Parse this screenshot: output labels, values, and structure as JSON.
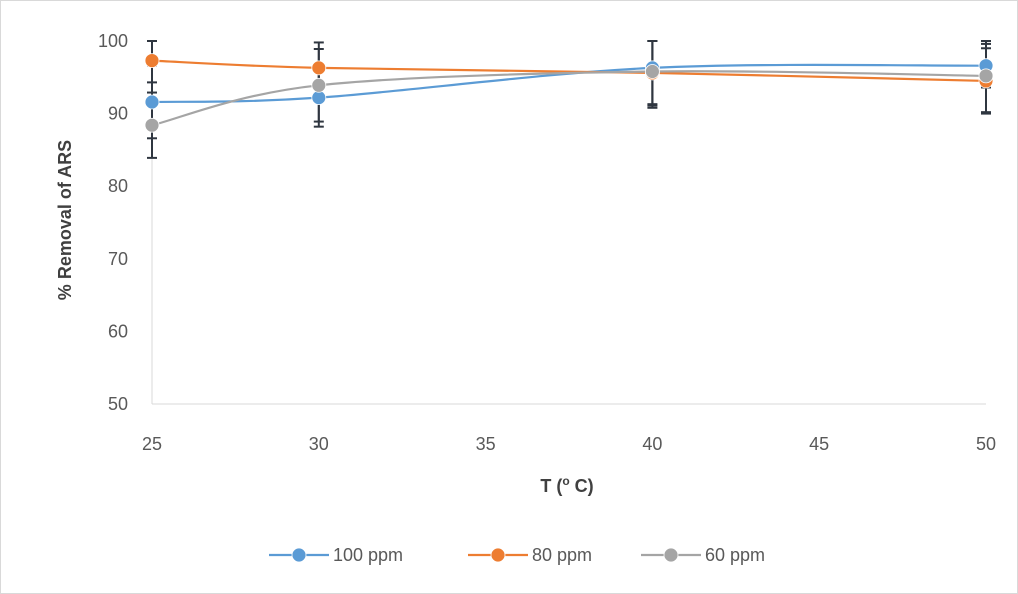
{
  "chart_data": {
    "type": "scatter",
    "xlabel": "T (",
    "xlabel_sup": "o",
    "xlabel_end": " C)",
    "ylabel": "% Removal of ARS",
    "xlim": [
      25,
      50
    ],
    "ylim": [
      50,
      100
    ],
    "xticks": [
      25,
      30,
      35,
      40,
      45,
      50
    ],
    "yticks": [
      50,
      60,
      70,
      80,
      90,
      100
    ],
    "grid": false,
    "smoothed_lines": true,
    "error_bars": true,
    "legend_position": "bottom",
    "series": [
      {
        "name": "100 ppm",
        "color": "#5b9bd5",
        "x": [
          25,
          30,
          40,
          50
        ],
        "y": [
          91.6,
          92.2,
          96.3,
          96.6
        ],
        "error": [
          5,
          4,
          5,
          3
        ]
      },
      {
        "name": "80 ppm",
        "color": "#ed7d31",
        "x": [
          25,
          30,
          40,
          50
        ],
        "y": [
          97.3,
          96.3,
          95.6,
          94.5
        ],
        "error": [
          3,
          3.5,
          4.5,
          4.5
        ]
      },
      {
        "name": "60 ppm",
        "color": "#a5a5a5",
        "x": [
          25,
          30,
          40,
          50
        ],
        "y": [
          88.4,
          93.9,
          95.8,
          95.2
        ],
        "error": [
          4.5,
          5,
          5,
          5
        ]
      }
    ]
  }
}
